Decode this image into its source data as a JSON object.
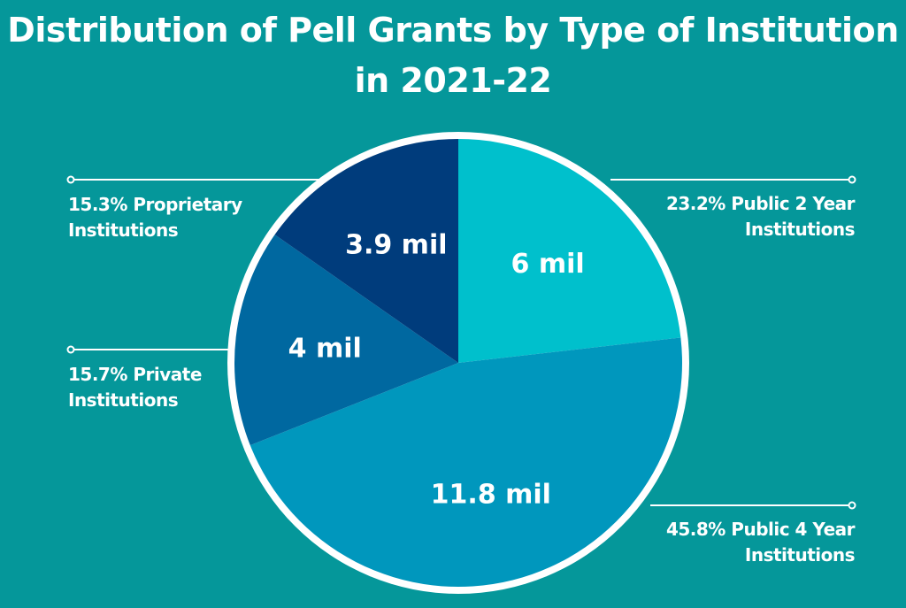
{
  "chart_data": {
    "type": "pie",
    "title": "Distribution of Pell Grants by Type of Institution in 2021-22",
    "start": "12 o'clock, clockwise",
    "slices": [
      {
        "label": "Public 2 Year Institutions",
        "percent": 23.2,
        "value_label": "6 mil",
        "value": 6,
        "color": "#00c0cc",
        "legend": "23.2% Public 2 Year Institutions"
      },
      {
        "label": "Public 4 Year Institutions",
        "percent": 45.8,
        "value_label": "11.8 mil",
        "value": 11.8,
        "color": "#0097bd",
        "legend": "45.8% Public 4 Year Institutions"
      },
      {
        "label": "Private Institutions",
        "percent": 15.7,
        "value_label": "4 mil",
        "value": 4,
        "color": "#0068a0",
        "legend": "15.7% Private Institutions"
      },
      {
        "label": "Proprietary Institutions",
        "percent": 15.3,
        "value_label": "3.9 mil",
        "value": 3.9,
        "color": "#003c7c",
        "legend": "15.3% Proprietary Institutions"
      }
    ]
  },
  "legend_lines": {
    "l0": "23.2% Public 2 Year",
    "l0b": "Institutions",
    "l1": "45.8% Public 4 Year",
    "l1b": "Institutions",
    "l2": "15.7% Private",
    "l2b": "Institutions",
    "l3": "15.3% Proprietary",
    "l3b": "Institutions"
  },
  "colors": {
    "background": "#05979a",
    "border": "#ffffff"
  }
}
